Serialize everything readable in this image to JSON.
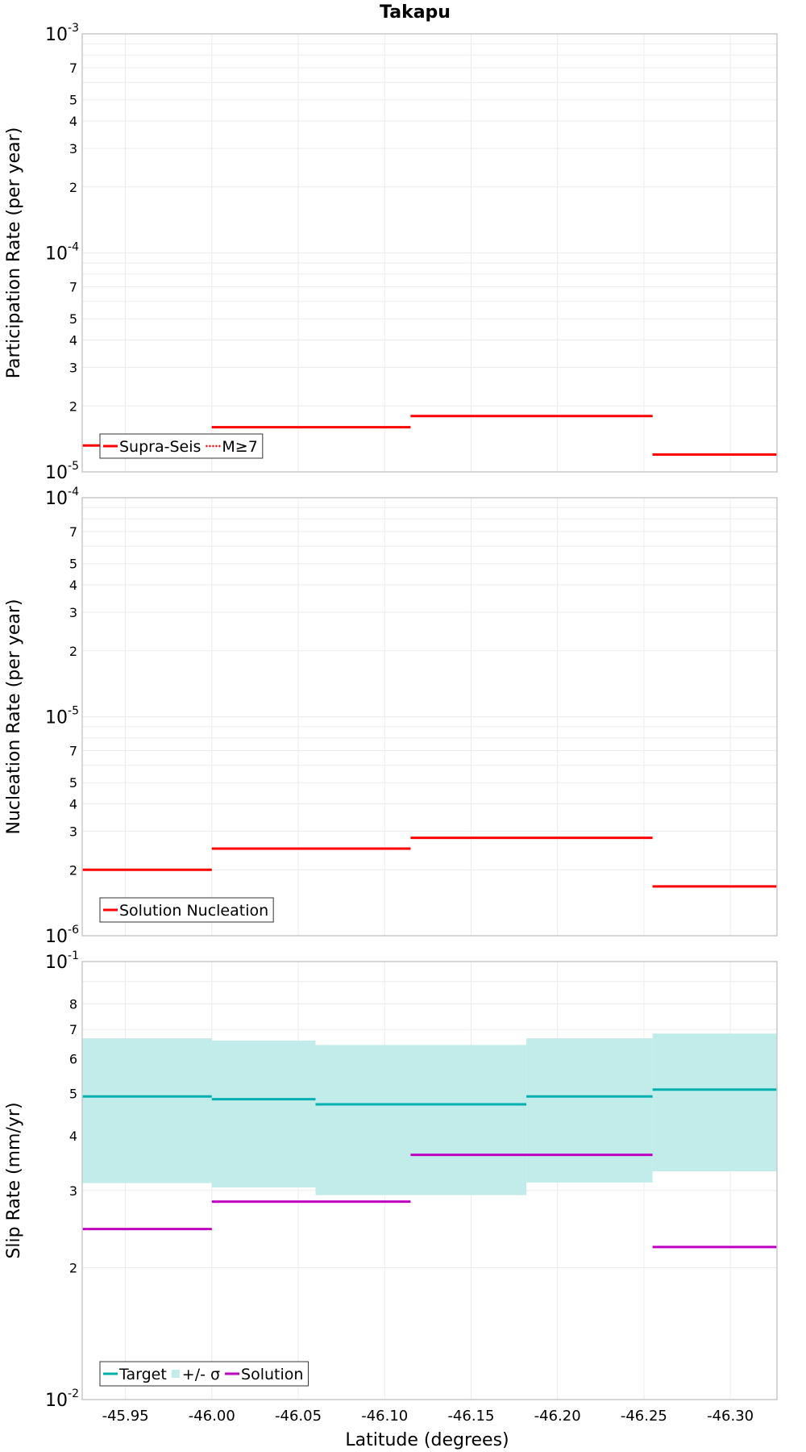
{
  "title": "Takapu",
  "xlabel": "Latitude (degrees)",
  "colors": {
    "red": "#ff0000",
    "teal": "#00b0b0",
    "band": "#c2ecea",
    "purple": "#c000c0",
    "grid": "#ebebeb",
    "frame": "#c8c8c8"
  },
  "chart_data": [
    {
      "type": "line",
      "ylabel": "Participation Rate (per year)",
      "xlim": [
        -45.925,
        -46.327
      ],
      "ylim": [
        1e-05,
        0.001
      ],
      "yscale": "log",
      "grid": true,
      "legend_position": "bottom-left",
      "x_ticks": [
        "-45.95",
        "-46.00",
        "-46.05",
        "-46.10",
        "-46.15",
        "-46.20",
        "-46.25",
        "-46.30"
      ],
      "y_major_ticks": [
        {
          "base": "10",
          "exp": "-5",
          "value": 1e-05
        },
        {
          "base": "10",
          "exp": "-4",
          "value": 0.0001
        },
        {
          "base": "10",
          "exp": "-3",
          "value": 0.001
        }
      ],
      "y_minor_labels": [
        "2",
        "3",
        "4",
        "5",
        "7"
      ],
      "series": [
        {
          "name": "Supra-Seis",
          "style": "solid",
          "color": "#ff0000",
          "segments": [
            [
              -45.925,
              -46.0,
              1.32e-05
            ],
            [
              -46.0,
              -46.115,
              1.6e-05
            ],
            [
              -46.115,
              -46.255,
              1.8e-05
            ],
            [
              -46.255,
              -46.327,
              1.2e-05
            ]
          ]
        },
        {
          "name": "M≥7",
          "style": "dotted",
          "color": "#ff0000",
          "segments": [
            [
              -45.925,
              -46.0,
              1.32e-05
            ],
            [
              -46.0,
              -46.115,
              1.6e-05
            ],
            [
              -46.115,
              -46.255,
              1.8e-05
            ],
            [
              -46.255,
              -46.327,
              1.2e-05
            ]
          ]
        }
      ]
    },
    {
      "type": "line",
      "ylabel": "Nucleation Rate (per year)",
      "xlim": [
        -45.925,
        -46.327
      ],
      "ylim": [
        1e-06,
        0.0001
      ],
      "yscale": "log",
      "grid": true,
      "legend_position": "bottom-left",
      "x_ticks": [
        "-45.95",
        "-46.00",
        "-46.05",
        "-46.10",
        "-46.15",
        "-46.20",
        "-46.25",
        "-46.30"
      ],
      "y_major_ticks": [
        {
          "base": "10",
          "exp": "-6",
          "value": 1e-06
        },
        {
          "base": "10",
          "exp": "-5",
          "value": 1e-05
        },
        {
          "base": "10",
          "exp": "-4",
          "value": 0.0001
        }
      ],
      "y_minor_labels": [
        "2",
        "3",
        "4",
        "5",
        "7"
      ],
      "series": [
        {
          "name": "Solution Nucleation",
          "style": "solid",
          "color": "#ff0000",
          "segments": [
            [
              -45.925,
              -46.0,
              2e-06
            ],
            [
              -46.0,
              -46.115,
              2.5e-06
            ],
            [
              -46.115,
              -46.255,
              2.8e-06
            ],
            [
              -46.255,
              -46.327,
              1.68e-06
            ]
          ]
        }
      ]
    },
    {
      "type": "line",
      "ylabel": "Slip Rate (mm/yr)",
      "xlim": [
        -45.925,
        -46.327
      ],
      "ylim": [
        0.01,
        0.1
      ],
      "yscale": "log",
      "grid": true,
      "legend_position": "bottom-left",
      "x_ticks": [
        "-45.95",
        "-46.00",
        "-46.05",
        "-46.10",
        "-46.15",
        "-46.20",
        "-46.25",
        "-46.30"
      ],
      "y_major_ticks": [
        {
          "base": "10",
          "exp": "-2",
          "value": 0.01
        },
        {
          "base": "10",
          "exp": "-1",
          "value": 0.1
        }
      ],
      "y_minor_labels": [
        "2",
        "3",
        "4",
        "5",
        "6",
        "7",
        "8"
      ],
      "band": {
        "name": "+/- σ",
        "color": "#c2ecea",
        "segments": [
          [
            -45.925,
            -46.0,
            0.0312,
            0.0668
          ],
          [
            -46.0,
            -46.06,
            0.0305,
            0.066
          ],
          [
            -46.06,
            -46.182,
            0.0293,
            0.0645
          ],
          [
            -46.182,
            -46.255,
            0.0313,
            0.0668
          ],
          [
            -46.255,
            -46.327,
            0.0332,
            0.0685
          ]
        ]
      },
      "series": [
        {
          "name": "Target",
          "style": "solid",
          "color": "#00b0b0",
          "segments": [
            [
              -45.925,
              -46.0,
              0.0492
            ],
            [
              -46.0,
              -46.06,
              0.0485
            ],
            [
              -46.06,
              -46.182,
              0.0472
            ],
            [
              -46.182,
              -46.255,
              0.0492
            ],
            [
              -46.255,
              -46.327,
              0.051
            ]
          ]
        },
        {
          "name": "Solution",
          "style": "solid",
          "color": "#c000c0",
          "segments": [
            [
              -45.925,
              -46.0,
              0.0245
            ],
            [
              -46.0,
              -46.115,
              0.0283
            ],
            [
              -46.115,
              -46.255,
              0.0362
            ],
            [
              -46.255,
              -46.327,
              0.0223
            ]
          ]
        }
      ]
    }
  ]
}
